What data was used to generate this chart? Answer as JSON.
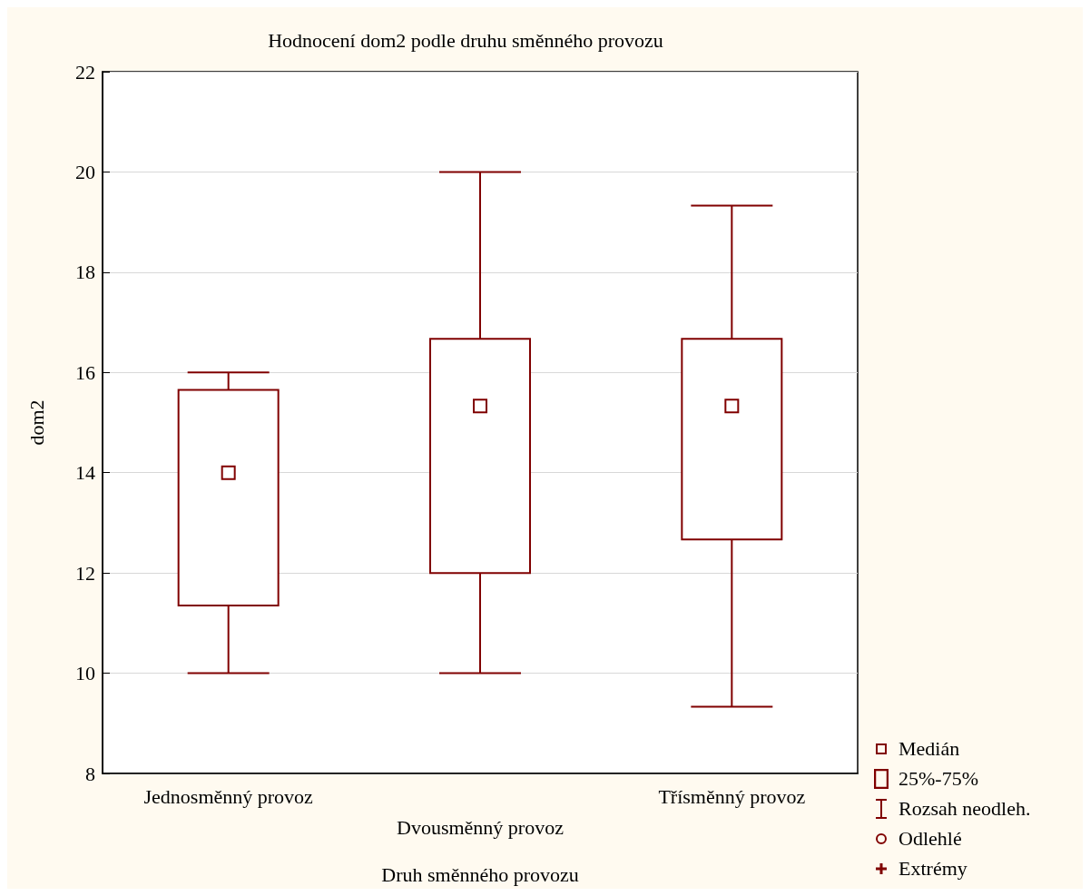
{
  "chart_data": {
    "type": "box",
    "title": "Hodnocení dom2 podle druhu směnného provozu",
    "xlabel": "Druh směnného provozu",
    "ylabel": "dom2",
    "categories": [
      "Jednosměnný provoz",
      "Dvousměnný provoz",
      "Třísměnný provoz"
    ],
    "series": [
      {
        "color": "#800000",
        "boxes": [
          {
            "low": 10,
            "q1": 11.35,
            "median": 14,
            "q3": 15.65,
            "high": 16
          },
          {
            "low": 10,
            "q1": 12,
            "median": 15.33,
            "q3": 16.67,
            "high": 20
          },
          {
            "low": 9.33,
            "q1": 12.67,
            "median": 15.33,
            "q3": 16.67,
            "high": 19.33
          }
        ]
      }
    ],
    "ylim": [
      8,
      22
    ],
    "yticks": [
      8,
      10,
      12,
      14,
      16,
      18,
      20,
      22
    ],
    "grid": "y",
    "annotations": [
      "Medián",
      "25%-75%",
      "Rozsah neodleh.",
      "Odlehlé",
      "Extrémy"
    ]
  }
}
